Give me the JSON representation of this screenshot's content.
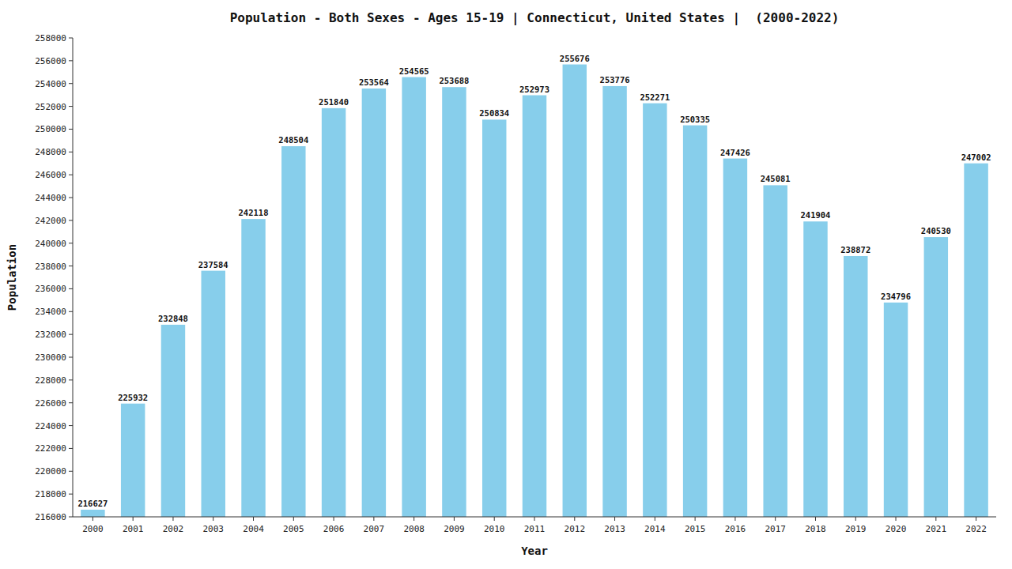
{
  "chart_data": {
    "type": "bar",
    "title": "Population - Both Sexes - Ages 15-19 | Connecticut, United States |  (2000-2022)",
    "xlabel": "Year",
    "ylabel": "Population",
    "categories": [
      "2000",
      "2001",
      "2002",
      "2003",
      "2004",
      "2005",
      "2006",
      "2007",
      "2008",
      "2009",
      "2010",
      "2011",
      "2012",
      "2013",
      "2014",
      "2015",
      "2016",
      "2017",
      "2018",
      "2019",
      "2020",
      "2021",
      "2022"
    ],
    "values": [
      216627,
      225932,
      232848,
      237584,
      242118,
      248504,
      251840,
      253564,
      254565,
      253688,
      250834,
      252973,
      255676,
      253776,
      252271,
      250335,
      247426,
      245081,
      241904,
      238872,
      234796,
      240530,
      247002
    ],
    "color": "#87CEEB",
    "ylim": [
      216000,
      258000
    ],
    "yticks": [
      216000,
      218000,
      220000,
      222000,
      224000,
      226000,
      228000,
      230000,
      232000,
      234000,
      236000,
      238000,
      240000,
      242000,
      244000,
      246000,
      248000,
      250000,
      252000,
      254000,
      256000,
      258000
    ],
    "grid": false,
    "data_labels": true
  }
}
